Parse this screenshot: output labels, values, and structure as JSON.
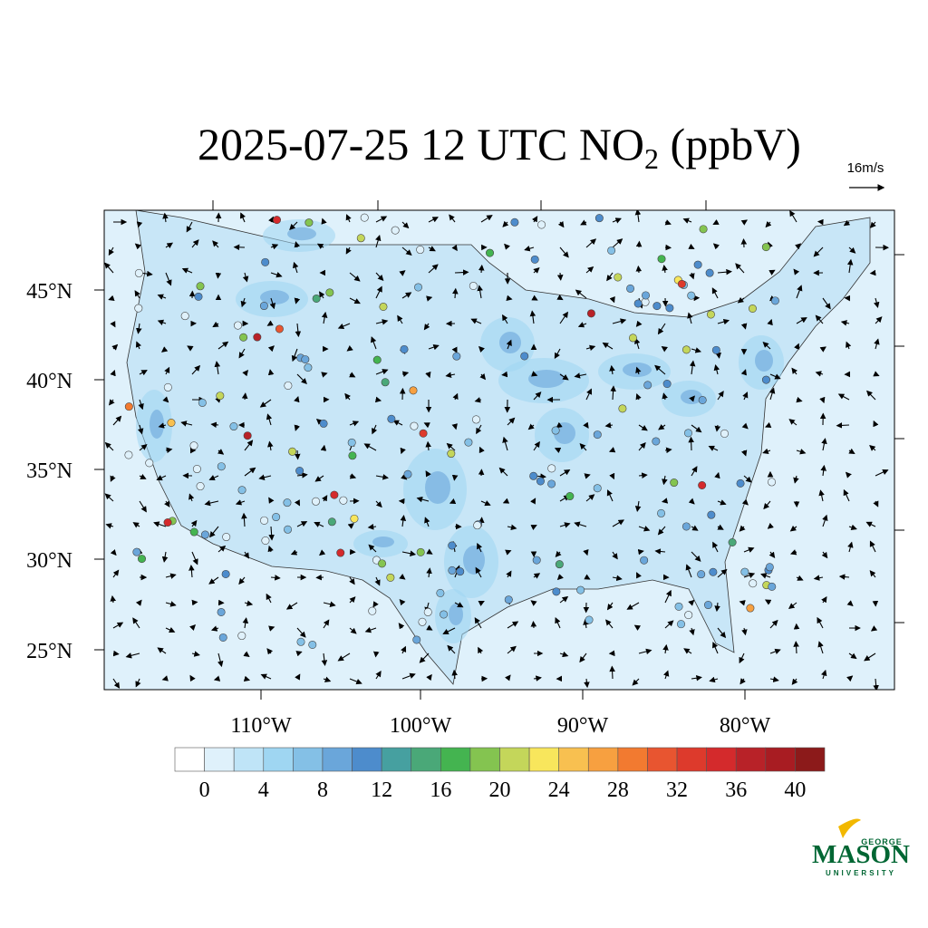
{
  "map": {
    "title": {
      "prefix": "2025-07-25 12 UTC NO",
      "sub": "2",
      "suffix": " (ppbV)"
    },
    "vector_reference": "16m/s",
    "lat_labels": [
      "45°N",
      "40°N",
      "35°N",
      "30°N",
      "25°N"
    ],
    "lon_labels": [
      "110°W",
      "100°W",
      "90°W",
      "80°W"
    ],
    "colorbar": {
      "ticks": [
        0,
        4,
        8,
        12,
        16,
        20,
        24,
        28,
        32,
        36,
        40
      ],
      "colors": [
        "#ffffff",
        "#dff1fb",
        "#bfe4f7",
        "#9fd6f2",
        "#84c0e6",
        "#6aa6da",
        "#4d8ccc",
        "#46a0a0",
        "#4aa878",
        "#44b450",
        "#84c450",
        "#c4d65a",
        "#f8e65c",
        "#f8c050",
        "#f7a040",
        "#f27a30",
        "#e85530",
        "#dd3a2c",
        "#d42a2c",
        "#b82228",
        "#a81c22",
        "#8c1a1a"
      ]
    },
    "logo": {
      "top": "GEORGE",
      "name": "MASON",
      "bottom": "UNIVERSITY"
    }
  }
}
